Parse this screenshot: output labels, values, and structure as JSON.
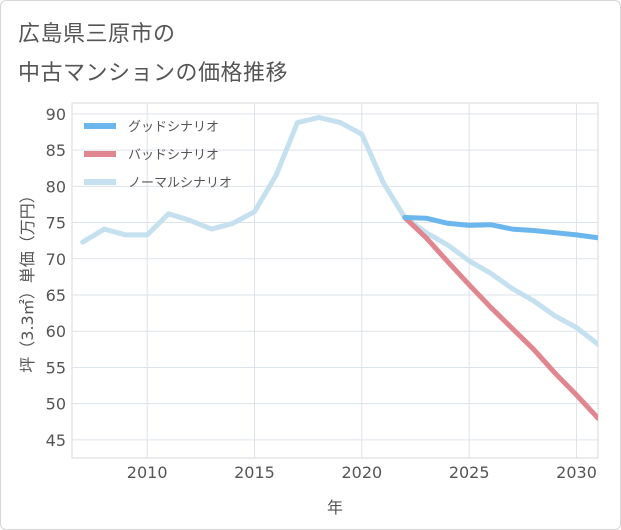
{
  "title_line1": "広島県三原市の",
  "title_line2": "中古マンションの価格推移",
  "chart_data": {
    "type": "line",
    "xlabel": "年",
    "ylabel": "坪（3.3㎡）単価（万円）",
    "xlim": [
      2006.5,
      2031
    ],
    "ylim": [
      42.5,
      91.5
    ],
    "xticks": [
      2010,
      2015,
      2020,
      2025,
      2030
    ],
    "yticks": [
      45,
      50,
      55,
      60,
      65,
      70,
      75,
      80,
      85,
      90
    ],
    "grid": true,
    "legend_position": "top-left",
    "series": [
      {
        "name": "グッドシナリオ",
        "color": "#6bb6ec",
        "x": [
          2022,
          2023,
          2024,
          2025,
          2026,
          2027,
          2028,
          2029,
          2030,
          2031
        ],
        "y": [
          75.7,
          75.6,
          74.9,
          74.6,
          74.7,
          74.1,
          73.9,
          73.6,
          73.3,
          72.9
        ]
      },
      {
        "name": "バッドシナリオ",
        "color": "#e0868e",
        "x": [
          2022,
          2023,
          2024,
          2025,
          2026,
          2027,
          2028,
          2029,
          2030,
          2031
        ],
        "y": [
          75.7,
          72.9,
          69.6,
          66.4,
          63.3,
          60.4,
          57.5,
          54.2,
          51.2,
          48.0
        ]
      },
      {
        "name": "ノーマルシナリオ",
        "color": "#c5e0ef",
        "x": [
          2007,
          2008,
          2009,
          2010,
          2011,
          2012,
          2013,
          2014,
          2015,
          2016,
          2017,
          2018,
          2019,
          2020,
          2021,
          2022,
          2023,
          2024,
          2025,
          2026,
          2027,
          2028,
          2029,
          2030,
          2031
        ],
        "y": [
          72.3,
          74.1,
          73.3,
          73.3,
          76.2,
          75.3,
          74.1,
          74.9,
          76.5,
          81.5,
          88.8,
          89.5,
          88.8,
          87.2,
          80.5,
          75.7,
          73.6,
          71.9,
          69.7,
          68.0,
          65.9,
          64.2,
          62.1,
          60.5,
          58.2
        ]
      }
    ]
  }
}
